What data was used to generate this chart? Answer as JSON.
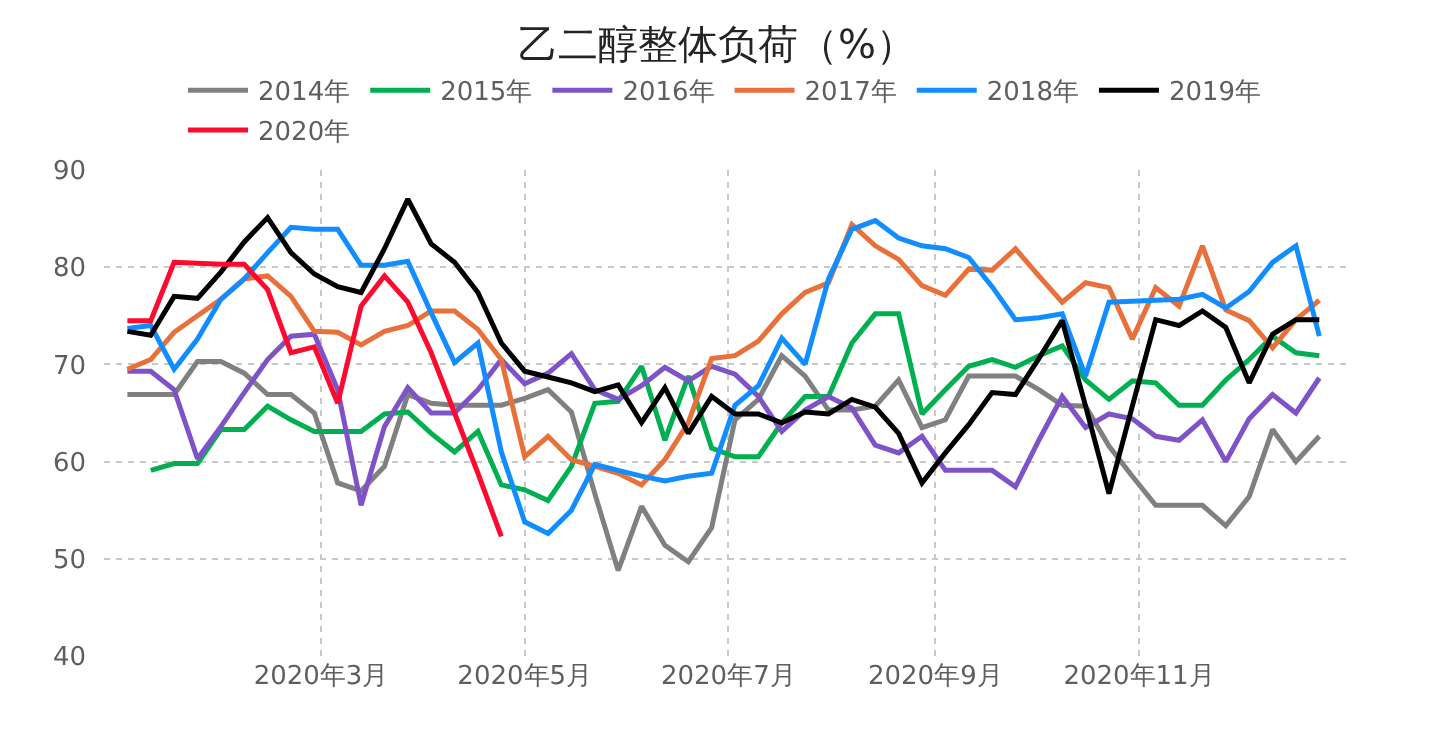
{
  "chart_data": {
    "type": "line",
    "title": "乙二醇整体负荷（%）",
    "x": [
      "2020-01-03",
      "2020-01-10",
      "2020-01-17",
      "2020-01-24",
      "2020-01-31",
      "2020-02-07",
      "2020-02-14",
      "2020-02-21",
      "2020-02-28",
      "2020-03-06",
      "2020-03-13",
      "2020-03-20",
      "2020-03-27",
      "2020-04-03",
      "2020-04-10",
      "2020-04-17",
      "2020-04-24",
      "2020-05-01",
      "2020-05-08",
      "2020-05-15",
      "2020-05-22",
      "2020-05-29",
      "2020-06-05",
      "2020-06-12",
      "2020-06-19",
      "2020-06-26",
      "2020-07-03",
      "2020-07-10",
      "2020-07-17",
      "2020-07-24",
      "2020-07-31",
      "2020-08-07",
      "2020-08-14",
      "2020-08-21",
      "2020-08-28",
      "2020-09-04",
      "2020-09-11",
      "2020-09-18",
      "2020-09-25",
      "2020-10-02",
      "2020-10-09",
      "2020-10-16",
      "2020-10-23",
      "2020-10-30",
      "2020-11-06",
      "2020-11-13",
      "2020-11-20",
      "2020-11-27",
      "2020-12-04",
      "2020-12-11",
      "2020-12-18",
      "2020-12-25"
    ],
    "series": [
      {
        "name": "2014年",
        "color": "#808080",
        "values": [
          66.9,
          66.9,
          66.9,
          70.3,
          70.3,
          69.1,
          66.9,
          66.9,
          65,
          57.8,
          57,
          59.5,
          66.9,
          66,
          65.8,
          65.8,
          65.8,
          66.5,
          67.4,
          65.1,
          56.7,
          48.8,
          55.4,
          51.4,
          49.7,
          53.2,
          64.3,
          66.4,
          70.9,
          68.8,
          65.3,
          65.3,
          65.7,
          68.4,
          63.5,
          64.3,
          68.8,
          68.8,
          68.8,
          67.4,
          65.8,
          65.7,
          61.6,
          58.5,
          55.5,
          55.5,
          55.5,
          53.4,
          56.4,
          63.3,
          60,
          62.6
        ]
      },
      {
        "name": "2015年",
        "color": "#00b050",
        "values": [
          null,
          59.1,
          59.8,
          59.8,
          63.3,
          63.3,
          65.7,
          64.3,
          63.1,
          63.1,
          63.1,
          64.9,
          65.1,
          62.9,
          61,
          63.1,
          57.6,
          57.1,
          56,
          59.5,
          66,
          66.2,
          69.8,
          62.2,
          68.8,
          61.4,
          60.5,
          60.5,
          64,
          66.7,
          66.7,
          72.2,
          75.2,
          75.2,
          64.9,
          67.4,
          69.8,
          70.5,
          69.7,
          70.9,
          71.9,
          68.4,
          66.4,
          68.3,
          68.1,
          65.8,
          65.8,
          68.4,
          70.5,
          72.9,
          71.2,
          70.9
        ]
      },
      {
        "name": "2016年",
        "color": "#7d53c7",
        "values": [
          69.3,
          69.3,
          67.4,
          60.3,
          63.6,
          67.1,
          70.5,
          72.9,
          73.1,
          67.4,
          55.5,
          63.6,
          67.6,
          65,
          65,
          67.4,
          70.5,
          68,
          69.1,
          71.1,
          67.4,
          66.4,
          67.8,
          69.7,
          68.3,
          69.8,
          69,
          66.7,
          63.1,
          65.3,
          66.7,
          65.5,
          61.7,
          60.9,
          62.6,
          59.1,
          59.1,
          59.1,
          57.4,
          62.2,
          66.7,
          63.5,
          64.9,
          64.4,
          62.6,
          62.2,
          64.3,
          60,
          64.4,
          66.9,
          65,
          68.6
        ]
      },
      {
        "name": "2017年",
        "color": "#e8703a",
        "values": [
          69.5,
          70.5,
          73.3,
          75,
          76.7,
          78.8,
          79.1,
          77,
          73.4,
          73.3,
          72,
          73.4,
          74,
          75.5,
          75.5,
          73.6,
          70.5,
          60.5,
          62.6,
          60.2,
          59.5,
          58.8,
          57.6,
          60.2,
          64,
          70.6,
          70.9,
          72.4,
          75.2,
          77.4,
          78.4,
          84.4,
          82.2,
          80.8,
          78.1,
          77.1,
          79.8,
          79.7,
          81.9,
          79.1,
          76.4,
          78.4,
          77.9,
          72.6,
          77.9,
          76,
          82.2,
          75.6,
          74.5,
          71.7,
          74.6,
          76.6
        ]
      },
      {
        "name": "2018年",
        "color": "#118dff",
        "values": [
          73.7,
          74,
          69.5,
          72.6,
          76.7,
          78.8,
          81.5,
          84.1,
          83.9,
          83.9,
          80.2,
          80.2,
          80.6,
          75.3,
          70.2,
          72.2,
          61,
          53.8,
          52.6,
          55,
          59.7,
          59.1,
          58.5,
          58,
          58.5,
          58.8,
          65.8,
          67.8,
          72.7,
          70,
          78.8,
          83.9,
          84.8,
          83,
          82.2,
          81.9,
          81,
          78,
          74.6,
          74.8,
          75.2,
          68.8,
          76.4,
          76.5,
          76.6,
          76.7,
          77.2,
          75.8,
          77.5,
          80.5,
          82.2,
          72.9
        ]
      },
      {
        "name": "2019年",
        "color": "#000000",
        "values": [
          73.4,
          73,
          77,
          76.8,
          79.5,
          82.6,
          85.1,
          81.5,
          79.3,
          78,
          77.4,
          81.9,
          87,
          82.4,
          80.5,
          77.4,
          72.2,
          69.3,
          68.7,
          68.1,
          67.2,
          67.9,
          64,
          67.6,
          62.9,
          66.7,
          64.9,
          64.9,
          64,
          65.1,
          64.9,
          66.4,
          65.6,
          62.9,
          57.8,
          60.9,
          63.8,
          67.1,
          66.9,
          70.6,
          74.5,
          65.7,
          56.7,
          65.7,
          74.6,
          74,
          75.5,
          73.8,
          68.1,
          73.1,
          74.6,
          74.6
        ]
      },
      {
        "name": "2020年",
        "color": "#ff0a2f",
        "x": [
          "2020-01-03",
          "2020-01-10",
          "2020-01-17",
          "2020-01-24",
          "2020-01-31",
          "2020-02-07",
          "2020-02-14",
          "2020-02-21",
          "2020-02-28",
          "2020-03-06",
          "2020-03-13",
          "2020-03-20",
          "2020-03-27",
          "2020-04-03",
          "2020-04-10",
          "2020-04-17",
          "2020-04-24"
        ],
        "values": [
          74.5,
          74.5,
          80.5,
          80.4,
          80.3,
          80.3,
          77.7,
          71.2,
          71.8,
          66,
          76,
          79.1,
          76.4,
          71.2,
          65,
          58.8,
          52.3
        ]
      }
    ],
    "xlim": [
      "2019-12-27",
      "2021-01-02"
    ],
    "xticks": [
      {
        "value": "2020-03-01",
        "label": "2020年3月"
      },
      {
        "value": "2020-05-01",
        "label": "2020年5月"
      },
      {
        "value": "2020-07-01",
        "label": "2020年7月"
      },
      {
        "value": "2020-09-01",
        "label": "2020年9月"
      },
      {
        "value": "2020-11-01",
        "label": "2020年11月"
      }
    ],
    "ylim": [
      40,
      90
    ],
    "yticks": [
      40,
      50,
      60,
      70,
      80,
      90
    ],
    "grid": true,
    "legend": "top",
    "marker": "none",
    "line_style": "solid"
  }
}
